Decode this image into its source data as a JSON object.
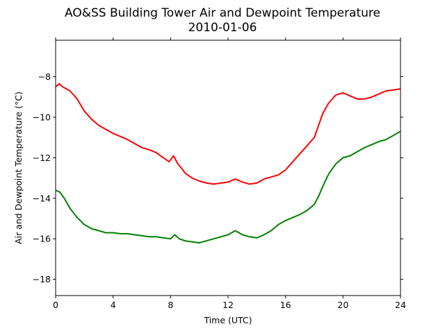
{
  "chart_data": {
    "type": "line",
    "title_line1": "AO&SS Building Tower Air and Dewpoint Temperature",
    "title_line2": "2010-01-06",
    "xlabel": "Time (UTC)",
    "ylabel": "Air and Dewpoint Temperature (°C)",
    "xlim": [
      0,
      24
    ],
    "ylim": [
      -18.8,
      -6.2
    ],
    "xticks": [
      0,
      4,
      8,
      12,
      16,
      20,
      24
    ],
    "yticks": [
      -18,
      -16,
      -14,
      -12,
      -10,
      -8
    ],
    "xtick_labels": [
      "0",
      "4",
      "8",
      "12",
      "16",
      "20",
      "24"
    ],
    "ytick_labels": [
      "−18",
      "−16",
      "−14",
      "−12",
      "−10",
      "−8"
    ],
    "grid": false,
    "series": [
      {
        "color": "#ff0000",
        "x": [
          0,
          0.25,
          0.5,
          1,
          1.5,
          2,
          2.5,
          3,
          3.5,
          4,
          4.5,
          5,
          5.5,
          6,
          6.5,
          7,
          7.5,
          7.9,
          8.2,
          8.5,
          8.8,
          9,
          9.5,
          10,
          10.5,
          11,
          11.5,
          12,
          12.5,
          13,
          13.5,
          14,
          14.5,
          15,
          15.5,
          16,
          16.5,
          17,
          17.5,
          18,
          18.3,
          18.6,
          19,
          19.5,
          20,
          20.5,
          21,
          21.5,
          22,
          22.5,
          23,
          23.5,
          24
        ],
        "y": [
          -8.5,
          -8.35,
          -8.5,
          -8.7,
          -9.1,
          -9.7,
          -10.1,
          -10.4,
          -10.6,
          -10.8,
          -10.95,
          -11.1,
          -11.3,
          -11.5,
          -11.6,
          -11.75,
          -12.0,
          -12.2,
          -11.9,
          -12.3,
          -12.55,
          -12.75,
          -13.0,
          -13.15,
          -13.25,
          -13.3,
          -13.25,
          -13.2,
          -13.05,
          -13.2,
          -13.3,
          -13.25,
          -13.05,
          -12.95,
          -12.85,
          -12.6,
          -12.2,
          -11.8,
          -11.4,
          -11.0,
          -10.4,
          -9.8,
          -9.3,
          -8.9,
          -8.8,
          -8.95,
          -9.1,
          -9.1,
          -9.0,
          -8.85,
          -8.7,
          -8.65,
          -8.6
        ]
      },
      {
        "color": "#008000",
        "x": [
          0,
          0.3,
          0.6,
          1,
          1.5,
          2,
          2.5,
          3,
          3.5,
          4,
          4.5,
          5,
          5.5,
          6,
          6.5,
          7,
          7.5,
          8,
          8.3,
          8.6,
          9,
          9.5,
          10,
          10.5,
          11,
          11.5,
          12,
          12.5,
          13,
          13.5,
          14,
          14.5,
          15,
          15.5,
          16,
          16.5,
          17,
          17.5,
          18,
          18.3,
          18.6,
          19,
          19.5,
          20,
          20.5,
          21,
          21.5,
          22,
          22.5,
          23,
          23.5,
          24
        ],
        "y": [
          -13.6,
          -13.7,
          -14.0,
          -14.5,
          -14.95,
          -15.3,
          -15.5,
          -15.6,
          -15.7,
          -15.7,
          -15.75,
          -15.75,
          -15.8,
          -15.85,
          -15.9,
          -15.9,
          -15.95,
          -16.0,
          -15.8,
          -16.0,
          -16.1,
          -16.15,
          -16.2,
          -16.1,
          -16.0,
          -15.9,
          -15.8,
          -15.6,
          -15.8,
          -15.9,
          -15.95,
          -15.8,
          -15.6,
          -15.3,
          -15.1,
          -14.95,
          -14.8,
          -14.6,
          -14.3,
          -13.9,
          -13.4,
          -12.8,
          -12.3,
          -12.0,
          -11.9,
          -11.7,
          -11.5,
          -11.35,
          -11.2,
          -11.1,
          -10.9,
          -10.7
        ]
      }
    ]
  }
}
